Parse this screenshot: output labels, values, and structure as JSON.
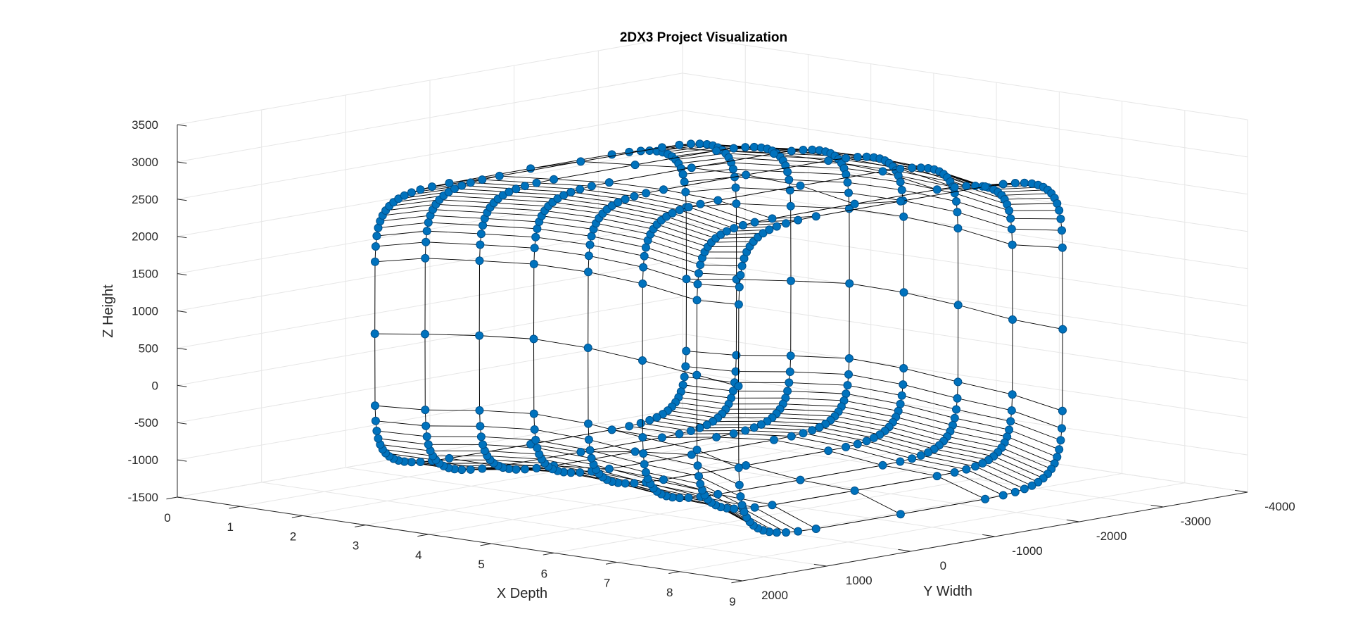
{
  "chart_data": {
    "type": "scatter3d",
    "title": "2DX3 Project Visualization",
    "xlabel": "X Depth",
    "ylabel": "Y Width",
    "zlabel": "Z Height",
    "xlim": [
      0,
      9
    ],
    "ylim": [
      -4000,
      2000
    ],
    "zlim": [
      -1500,
      3500
    ],
    "xticks": [
      "0",
      "1",
      "2",
      "3",
      "4",
      "5",
      "6",
      "7",
      "8",
      "9"
    ],
    "yticks": [
      "-4000",
      "-3000",
      "-2000",
      "-1000",
      "0",
      "1000",
      "2000"
    ],
    "zticks": [
      "-1500",
      "-1000",
      "-500",
      "0",
      "500",
      "1000",
      "1500",
      "2000",
      "2500",
      "3000",
      "3500"
    ],
    "grid": true,
    "marker_color": "#0072BD",
    "line_color": "#000000",
    "points_per_scan": 64,
    "scans": [
      {
        "x": 1,
        "ymin": -3300,
        "ymax": 400,
        "zmin": -1350,
        "zmax": 2350
      },
      {
        "x": 2,
        "ymin": -3150,
        "ymax": 550,
        "zmin": -1300,
        "zmax": 2600
      },
      {
        "x": 3,
        "ymin": -3050,
        "ymax": 650,
        "zmin": -1150,
        "zmax": 2700
      },
      {
        "x": 4,
        "ymin": -3000,
        "ymax": 750,
        "zmin": -1050,
        "zmax": 2800
      },
      {
        "x": 5,
        "ymin": -2900,
        "ymax": 850,
        "zmin": -1050,
        "zmax": 2850
      },
      {
        "x": 6,
        "ymin": -2800,
        "ymax": 950,
        "zmin": -1100,
        "zmax": 2850
      },
      {
        "x": 7,
        "ymin": -2700,
        "ymax": 1050,
        "zmin": -1100,
        "zmax": 2750
      },
      {
        "x": 8,
        "ymin": -2550,
        "ymax": 1300,
        "zmin": -1250,
        "zmax": 2950
      }
    ]
  }
}
